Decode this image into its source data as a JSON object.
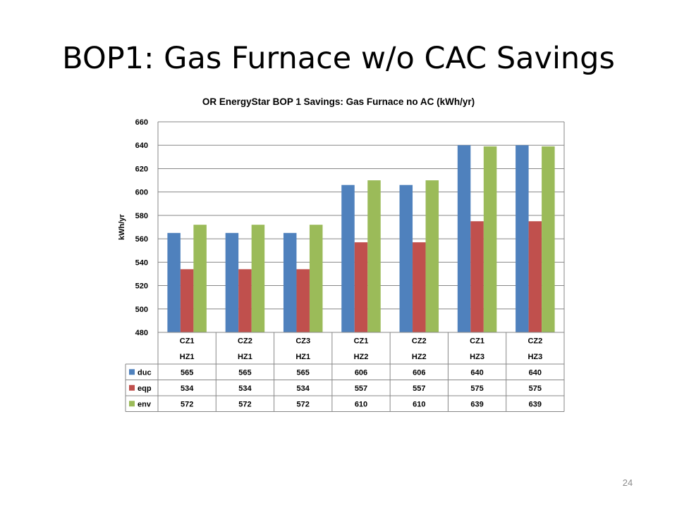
{
  "slide": {
    "title": "BOP1:  Gas Furnace w/o CAC Savings",
    "page_number": "24"
  },
  "chart_data": {
    "type": "bar",
    "title": "OR EnergyStar BOP 1 Savings:  Gas Furnace no AC  (kWh/yr)",
    "ylabel": "kWh/yr",
    "xlabel": "",
    "ylim": [
      480,
      660
    ],
    "yticks": [
      480,
      500,
      520,
      540,
      560,
      580,
      600,
      620,
      640,
      660
    ],
    "grid": true,
    "categories_level1": [
      "CZ1",
      "CZ2",
      "CZ3",
      "CZ1",
      "CZ2",
      "CZ1",
      "CZ2"
    ],
    "categories_level2": [
      "HZ1",
      "HZ1",
      "HZ1",
      "HZ2",
      "HZ2",
      "HZ3",
      "HZ3"
    ],
    "legend": "data-table",
    "series": [
      {
        "name": "duc",
        "color": "#4f81bd",
        "values": [
          565,
          565,
          565,
          606,
          606,
          640,
          640
        ]
      },
      {
        "name": "eqp",
        "color": "#c0504d",
        "values": [
          534,
          534,
          534,
          557,
          557,
          575,
          575
        ]
      },
      {
        "name": "env",
        "color": "#9bbb59",
        "values": [
          572,
          572,
          572,
          610,
          610,
          639,
          639
        ]
      }
    ]
  }
}
